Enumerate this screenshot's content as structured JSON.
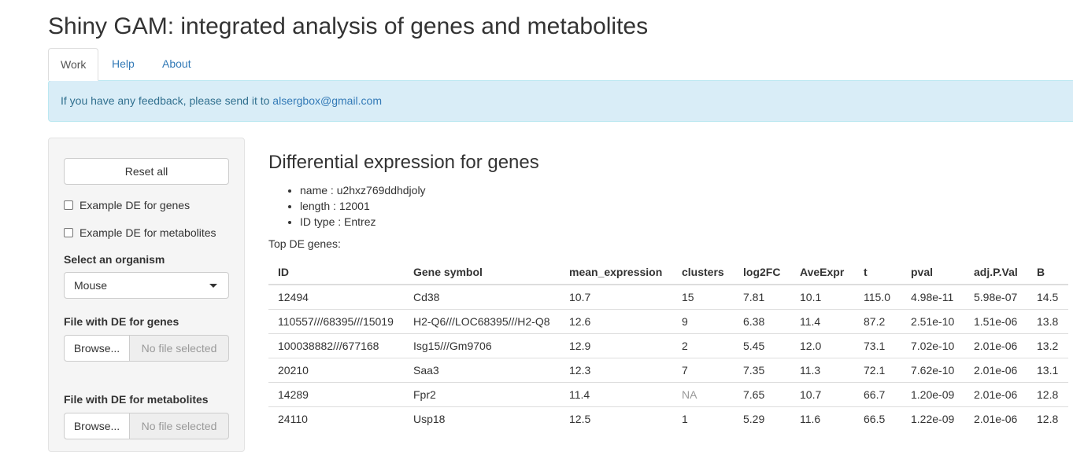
{
  "app": {
    "title": "Shiny GAM: integrated analysis of genes and metabolites"
  },
  "tabs": [
    {
      "label": "Work",
      "active": true
    },
    {
      "label": "Help",
      "active": false
    },
    {
      "label": "About",
      "active": false
    }
  ],
  "alert": {
    "text": "If you have any feedback, please send it to ",
    "email": "alsergbox@gmail.com"
  },
  "sidebar": {
    "reset_label": "Reset all",
    "example_genes_label": "Example DE for genes",
    "example_genes_checked": false,
    "example_metabolites_label": "Example DE for metabolites",
    "example_metabolites_checked": false,
    "organism_label": "Select an organism",
    "organism_value": "Mouse",
    "genes_file_label": "File with DE for genes",
    "genes_browse_label": "Browse...",
    "genes_file_status": "No file selected",
    "metabolites_file_label": "File with DE for metabolites",
    "metabolites_browse_label": "Browse...",
    "metabolites_file_status": "No file selected"
  },
  "main": {
    "title": "Differential expression for genes",
    "info": [
      "name : u2hxz769ddhdjoly",
      "length : 12001",
      "ID type : Entrez"
    ],
    "top_label": "Top DE genes:",
    "table": {
      "headers": [
        "ID",
        "Gene symbol",
        "mean_expression",
        "clusters",
        "log2FC",
        "AveExpr",
        "t",
        "pval",
        "adj.P.Val",
        "B"
      ],
      "rows": [
        [
          "12494",
          "Cd38",
          "10.7",
          "15",
          "7.81",
          "10.1",
          "115.0",
          "4.98e-11",
          "5.98e-07",
          "14.5"
        ],
        [
          "110557///68395///15019",
          "H2-Q6///LOC68395///H2-Q8",
          "12.6",
          "9",
          "6.38",
          "11.4",
          "87.2",
          "2.51e-10",
          "1.51e-06",
          "13.8"
        ],
        [
          "100038882///677168",
          "Isg15///Gm9706",
          "12.9",
          "2",
          "5.45",
          "12.0",
          "73.1",
          "7.02e-10",
          "2.01e-06",
          "13.2"
        ],
        [
          "20210",
          "Saa3",
          "12.3",
          "7",
          "7.35",
          "11.3",
          "72.1",
          "7.62e-10",
          "2.01e-06",
          "13.1"
        ],
        [
          "14289",
          "Fpr2",
          "11.4",
          "NA",
          "7.65",
          "10.7",
          "66.7",
          "1.20e-09",
          "2.01e-06",
          "12.8"
        ],
        [
          "24110",
          "Usp18",
          "12.5",
          "1",
          "5.29",
          "11.6",
          "66.5",
          "1.22e-09",
          "2.01e-06",
          "12.8"
        ]
      ]
    }
  }
}
